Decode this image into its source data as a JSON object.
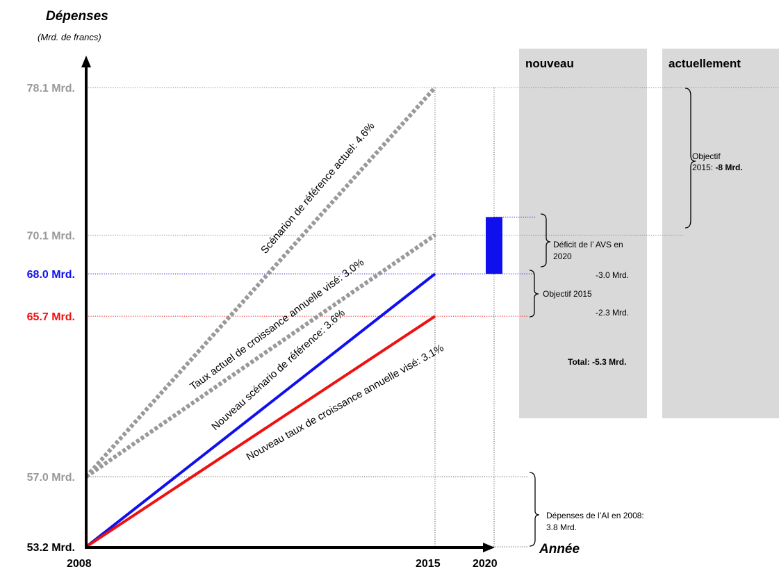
{
  "chart_data": {
    "type": "line",
    "ylabel": "Dépenses",
    "yunit": "(Mrd. de francs)",
    "xlabel": "Année",
    "x_ticks": [
      "2008",
      "2015",
      "2020"
    ],
    "y_ticks": [
      {
        "value": 78.1,
        "label": "78.1 Mrd.",
        "color": "#999999"
      },
      {
        "value": 70.1,
        "label": "70.1 Mrd.",
        "color": "#999999"
      },
      {
        "value": 68.0,
        "label": "68.0 Mrd.",
        "color": "#1010ee"
      },
      {
        "value": 65.7,
        "label": "65.7 Mrd.",
        "color": "#ee1111"
      },
      {
        "value": 57.0,
        "label": "57.0 Mrd.",
        "color": "#999999"
      },
      {
        "value": 53.2,
        "label": "53.2 Mrd.",
        "color": "#000000"
      }
    ],
    "series": [
      {
        "label": "Scénarion de référence actuel: 4.6%",
        "color": "#999999",
        "style": "dotted",
        "points": [
          {
            "x": 2008,
            "y": 57.0
          },
          {
            "x": 2015,
            "y": 78.1
          }
        ]
      },
      {
        "label": "Taux actuel de croissance annuelle visé: 3.0%",
        "color": "#999999",
        "style": "dotted",
        "points": [
          {
            "x": 2008,
            "y": 57.0
          },
          {
            "x": 2015,
            "y": 70.1
          }
        ]
      },
      {
        "label": "Nouveau scénario de référence: 3.6%",
        "color": "#1010ee",
        "style": "solid",
        "points": [
          {
            "x": 2008,
            "y": 53.2
          },
          {
            "x": 2015,
            "y": 68.0
          }
        ]
      },
      {
        "label": "Nouveau taux de croissance annuelle visé: 3.1%",
        "color": "#ee1111",
        "style": "solid",
        "points": [
          {
            "x": 2008,
            "y": 53.2
          },
          {
            "x": 2015,
            "y": 65.7
          }
        ]
      }
    ],
    "bar": {
      "x": 2020,
      "y_from": 68.0,
      "y_to": 70.1,
      "color": "#1010ee"
    }
  },
  "panels": {
    "nouveau": {
      "title": "nouveau"
    },
    "actuellement": {
      "title": "actuellement"
    }
  },
  "annotations": {
    "deficit_l1": "Déficit de l’ AVS en",
    "deficit_l2": "2020",
    "deficit_value": "-3.0 Mrd.",
    "objectif2015": "Objectif 2015",
    "objectif2015_value": "-2.3 Mrd.",
    "total": "Total: -5.3 Mrd.",
    "objectif_l1": "Objectif",
    "objectif_l2_prefix": "2015: ",
    "objectif_l2_value": "-8 Mrd.",
    "ai_l1": "Dépenses de l’AI en 2008:",
    "ai_l2": "3.8 Mrd."
  }
}
